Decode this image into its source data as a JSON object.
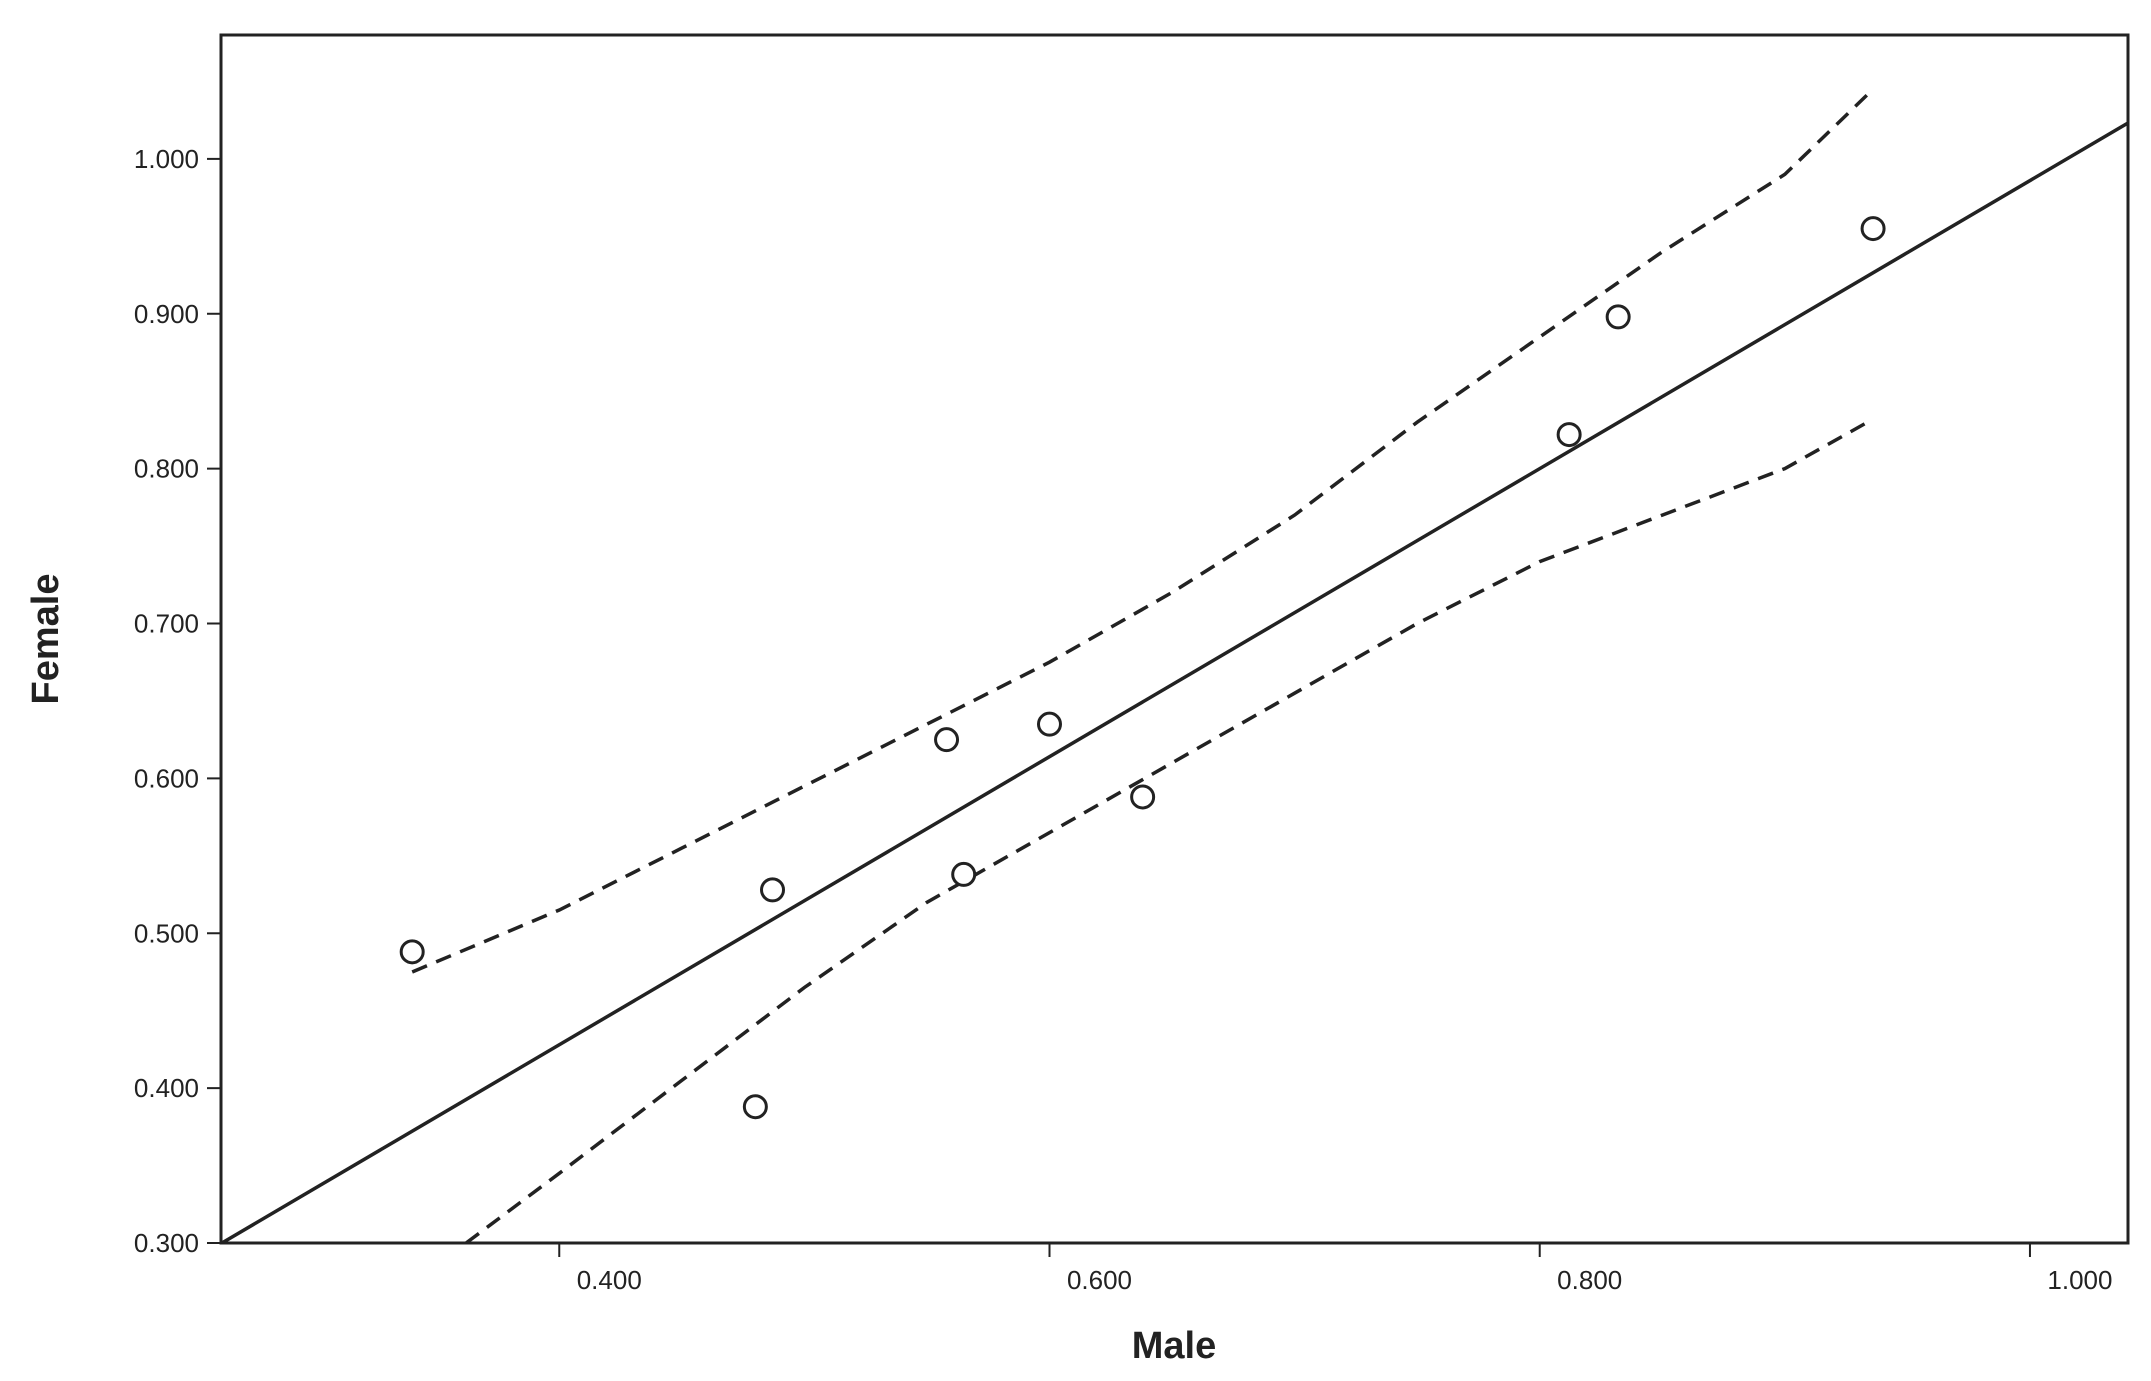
{
  "chart_data": {
    "type": "scatter",
    "title": "",
    "xlabel": "Male",
    "ylabel": "Female",
    "xlim": [
      0.262,
      1.04
    ],
    "ylim": [
      0.3,
      1.08
    ],
    "x_ticks": [
      {
        "value": 0.4,
        "label": "0.400"
      },
      {
        "value": 0.6,
        "label": "0.600"
      },
      {
        "value": 0.8,
        "label": "0.800"
      },
      {
        "value": 1.0,
        "label": "1.000"
      }
    ],
    "y_ticks": [
      {
        "value": 0.3,
        "label": "0.300"
      },
      {
        "value": 0.4,
        "label": "0.400"
      },
      {
        "value": 0.5,
        "label": "0.500"
      },
      {
        "value": 0.6,
        "label": "0.600"
      },
      {
        "value": 0.7,
        "label": "0.700"
      },
      {
        "value": 0.8,
        "label": "0.800"
      },
      {
        "value": 0.9,
        "label": "0.900"
      },
      {
        "value": 1.0,
        "label": "1.000"
      }
    ],
    "points": [
      {
        "x": 0.34,
        "y": 0.488
      },
      {
        "x": 0.48,
        "y": 0.388
      },
      {
        "x": 0.487,
        "y": 0.528
      },
      {
        "x": 0.558,
        "y": 0.625
      },
      {
        "x": 0.565,
        "y": 0.538
      },
      {
        "x": 0.6,
        "y": 0.635
      },
      {
        "x": 0.638,
        "y": 0.588
      },
      {
        "x": 0.812,
        "y": 0.822
      },
      {
        "x": 0.832,
        "y": 0.898
      },
      {
        "x": 0.936,
        "y": 0.955
      }
    ],
    "fit_line": {
      "slope": 0.93,
      "intercept": 0.056
    },
    "confidence_band": {
      "upper": [
        {
          "x": 0.34,
          "y": 0.475
        },
        {
          "x": 0.4,
          "y": 0.515
        },
        {
          "x": 0.45,
          "y": 0.555
        },
        {
          "x": 0.5,
          "y": 0.595
        },
        {
          "x": 0.55,
          "y": 0.635
        },
        {
          "x": 0.6,
          "y": 0.675
        },
        {
          "x": 0.65,
          "y": 0.72
        },
        {
          "x": 0.7,
          "y": 0.77
        },
        {
          "x": 0.75,
          "y": 0.83
        },
        {
          "x": 0.8,
          "y": 0.885
        },
        {
          "x": 0.85,
          "y": 0.94
        },
        {
          "x": 0.9,
          "y": 0.99
        },
        {
          "x": 0.936,
          "y": 1.045
        }
      ],
      "lower": [
        {
          "x": 0.362,
          "y": 0.3
        },
        {
          "x": 0.4,
          "y": 0.345
        },
        {
          "x": 0.45,
          "y": 0.405
        },
        {
          "x": 0.5,
          "y": 0.465
        },
        {
          "x": 0.55,
          "y": 0.52
        },
        {
          "x": 0.6,
          "y": 0.565
        },
        {
          "x": 0.65,
          "y": 0.61
        },
        {
          "x": 0.7,
          "y": 0.655
        },
        {
          "x": 0.75,
          "y": 0.7
        },
        {
          "x": 0.8,
          "y": 0.74
        },
        {
          "x": 0.85,
          "y": 0.77
        },
        {
          "x": 0.9,
          "y": 0.8
        },
        {
          "x": 0.936,
          "y": 0.832
        }
      ]
    },
    "grid": false,
    "colors": {
      "line": "#222222",
      "marker": "#222222",
      "background": "#ffffff"
    }
  }
}
